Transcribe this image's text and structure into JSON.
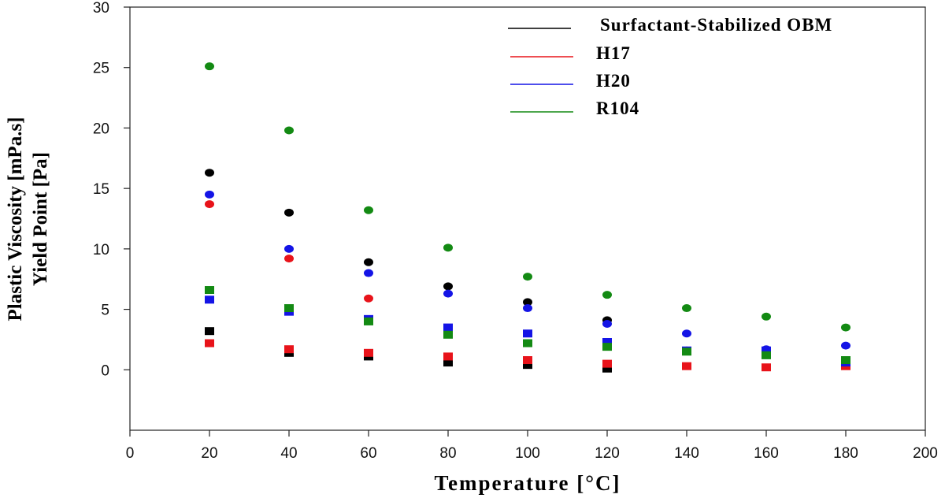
{
  "chart_data": {
    "type": "scatter",
    "title": "",
    "xlabel": "Temperature [°C]",
    "ylabel": [
      "Plastic Viscosity [mPa.s]",
      "Yield Point [Pa]"
    ],
    "xlim": [
      0,
      200
    ],
    "ylim": [
      -5,
      30
    ],
    "xticks": [
      0,
      20,
      40,
      60,
      80,
      100,
      120,
      140,
      160,
      180,
      200
    ],
    "yticks": [
      0,
      5,
      10,
      15,
      20,
      25,
      30
    ],
    "grid": false,
    "legend_position": "top-right",
    "x": [
      20,
      40,
      60,
      80,
      100,
      120,
      140,
      160,
      180
    ],
    "series": [
      {
        "name": "Surfactant-Stabilized OBM",
        "color": "#000000",
        "plastic_viscosity": [
          16.3,
          13.0,
          8.9,
          6.9,
          5.6,
          4.1,
          null,
          null,
          null
        ],
        "yield_point": [
          3.2,
          1.4,
          1.1,
          0.6,
          0.4,
          0.1,
          null,
          null,
          null
        ]
      },
      {
        "name": "H17",
        "color": "#e8131a",
        "plastic_viscosity": [
          13.7,
          9.2,
          5.9,
          null,
          null,
          null,
          1.6,
          null,
          null
        ],
        "yield_point": [
          2.2,
          1.7,
          1.4,
          1.1,
          0.8,
          0.5,
          0.3,
          0.2,
          0.3
        ]
      },
      {
        "name": "H20",
        "color": "#1414e6",
        "plastic_viscosity": [
          14.5,
          10.0,
          8.0,
          6.3,
          5.1,
          3.8,
          3.0,
          1.7,
          2.0
        ],
        "yield_point": [
          5.8,
          4.8,
          4.2,
          3.5,
          3.0,
          2.3,
          1.6,
          1.6,
          0.6
        ]
      },
      {
        "name": "R104",
        "color": "#138a13",
        "plastic_viscosity": [
          25.1,
          19.8,
          13.2,
          10.1,
          7.7,
          6.2,
          5.1,
          4.4,
          3.5
        ],
        "yield_point": [
          6.6,
          5.1,
          4.0,
          2.9,
          2.2,
          1.9,
          1.5,
          1.2,
          0.8
        ]
      }
    ]
  }
}
